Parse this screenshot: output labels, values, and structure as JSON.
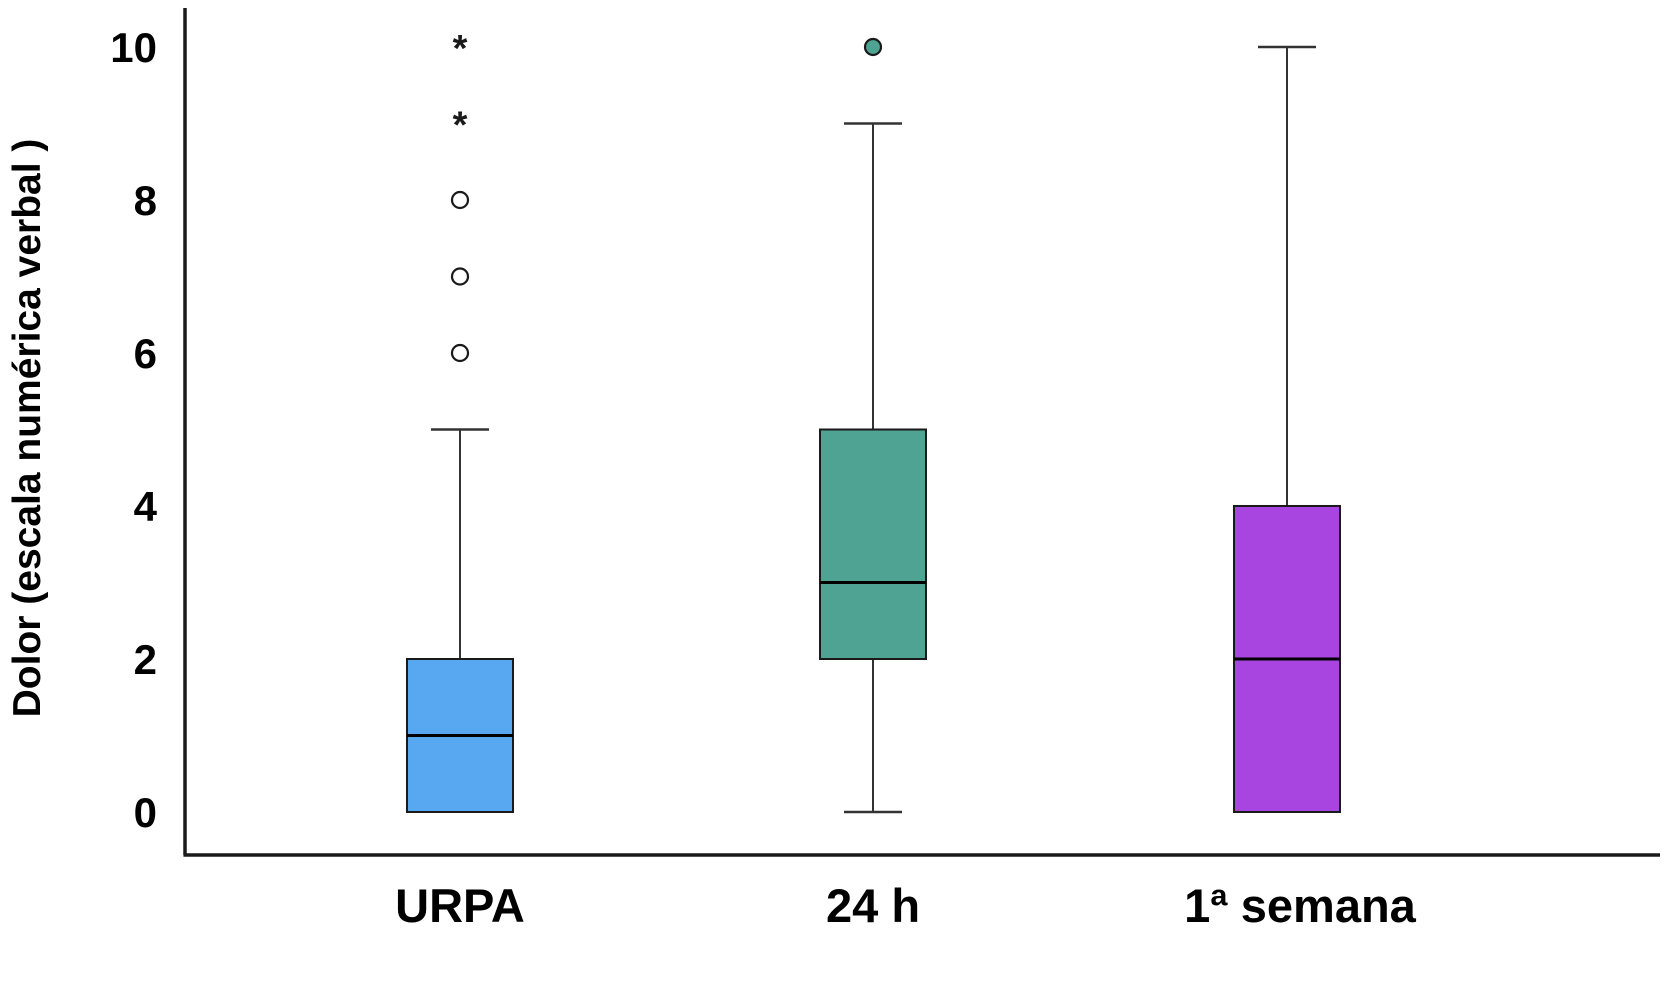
{
  "chart_data": {
    "type": "boxplot",
    "title": "",
    "xlabel": "",
    "ylabel": "Dolor (escala numérica verbal )",
    "ylim": [
      0,
      10
    ],
    "yticks": [
      0,
      2,
      4,
      6,
      8,
      10
    ],
    "grid": false,
    "legend": "none",
    "categories": [
      "URPA",
      "24 h",
      "1ª semana"
    ],
    "series": [
      {
        "name": "URPA",
        "color": "#58A8F1",
        "min": 0,
        "q1": 0,
        "median": 1,
        "q3": 2,
        "whisker_high": 5,
        "outliers": [
          {
            "value": 6,
            "type": "circle"
          },
          {
            "value": 7,
            "type": "circle"
          },
          {
            "value": 8,
            "type": "circle"
          },
          {
            "value": 9,
            "type": "asterisk"
          },
          {
            "value": 10,
            "type": "asterisk"
          }
        ]
      },
      {
        "name": "24 h",
        "color": "#4FA392",
        "min": 0,
        "q1": 2,
        "median": 3,
        "q3": 5,
        "whisker_high": 9,
        "outliers": [
          {
            "value": 10,
            "type": "circle-filled"
          }
        ]
      },
      {
        "name": "1ª semana",
        "color": "#A844DF",
        "min": 0,
        "q1": 0,
        "median": 2,
        "q3": 4,
        "whisker_high": 10,
        "outliers": []
      }
    ],
    "colors": {
      "axis": "#1a1a1a",
      "box_stroke": "#1a1a1a",
      "median": "#000000",
      "background": "#ffffff"
    }
  }
}
